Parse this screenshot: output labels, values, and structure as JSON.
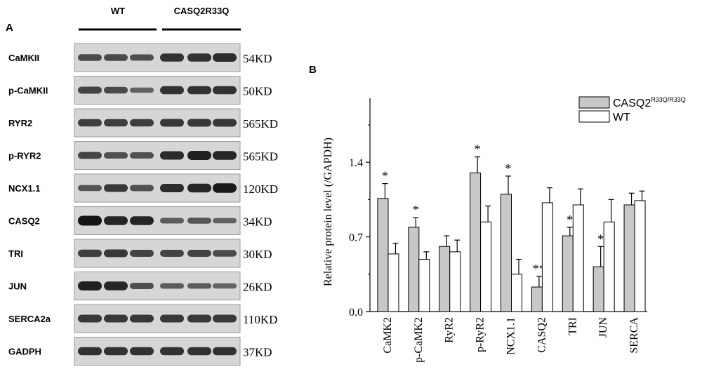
{
  "panel_a": {
    "label": "A",
    "groups": [
      "WT",
      "CASQ2R33Q"
    ],
    "blots": [
      {
        "protein": "CaMKII",
        "size": "54KD",
        "intensities": [
          0.55,
          0.55,
          0.5,
          0.75,
          0.75,
          0.8
        ]
      },
      {
        "protein": "p-CaMKII",
        "size": "50KD",
        "intensities": [
          0.6,
          0.55,
          0.35,
          0.75,
          0.75,
          0.75
        ]
      },
      {
        "protein": "RYR2",
        "size": "565KD",
        "intensities": [
          0.65,
          0.65,
          0.65,
          0.7,
          0.7,
          0.7
        ]
      },
      {
        "protein": "p-RYR2",
        "size": "565KD",
        "intensities": [
          0.6,
          0.5,
          0.5,
          0.8,
          0.9,
          0.85
        ]
      },
      {
        "protein": "NCX1.1",
        "size": "120KD",
        "intensities": [
          0.45,
          0.7,
          0.5,
          0.8,
          0.85,
          0.95
        ]
      },
      {
        "protein": "CASQ2",
        "size": "34KD",
        "intensities": [
          1.0,
          0.85,
          0.85,
          0.4,
          0.45,
          0.35
        ]
      },
      {
        "protein": "TRI",
        "size": "30KD",
        "intensities": [
          0.65,
          0.7,
          0.6,
          0.6,
          0.6,
          0.55
        ]
      },
      {
        "protein": "JUN",
        "size": "26KD",
        "intensities": [
          0.9,
          0.85,
          0.5,
          0.4,
          0.4,
          0.35
        ]
      },
      {
        "protein": "SERCA2a",
        "size": "110KD",
        "intensities": [
          0.7,
          0.7,
          0.7,
          0.7,
          0.7,
          0.7
        ]
      },
      {
        "protein": "GADPH",
        "size": "37KD",
        "intensities": [
          0.75,
          0.75,
          0.75,
          0.75,
          0.75,
          0.75
        ]
      }
    ]
  },
  "chart_data": {
    "type": "bar",
    "panel_label": "B",
    "title": "",
    "xlabel": "",
    "ylabel": "Relative protein level (/GAPDH)",
    "ylim": [
      0,
      2.0
    ],
    "yticks": [
      "0.0",
      "0.7",
      "1.4"
    ],
    "ytick_values": [
      0,
      0.7,
      1.4
    ],
    "categories": [
      "CaMK2",
      "p-CaMK2",
      "RyR2",
      "p-RyR2",
      "NCX1.1",
      "CASQ2",
      "TRI",
      "JUN",
      "SERCA"
    ],
    "series": [
      {
        "name": "CASQ2",
        "name_sup": "R33Q/R33Q",
        "color": "#c8c8c8",
        "values": [
          1.06,
          0.79,
          0.61,
          1.3,
          1.1,
          0.23,
          0.71,
          0.42,
          1.0
        ],
        "errors": [
          0.14,
          0.09,
          0.1,
          0.15,
          0.17,
          0.1,
          0.08,
          0.19,
          0.11
        ]
      },
      {
        "name": "WT",
        "color": "#ffffff",
        "values": [
          0.54,
          0.49,
          0.56,
          0.84,
          0.35,
          1.02,
          1.0,
          0.84,
          1.04
        ],
        "errors": [
          0.1,
          0.07,
          0.11,
          0.15,
          0.14,
          0.14,
          0.15,
          0.21,
          0.09
        ]
      }
    ],
    "annotations": [
      "*",
      "*",
      "",
      "*",
      "*",
      "**",
      "*",
      "*",
      ""
    ],
    "legend_position": "top-right",
    "grid": false
  }
}
